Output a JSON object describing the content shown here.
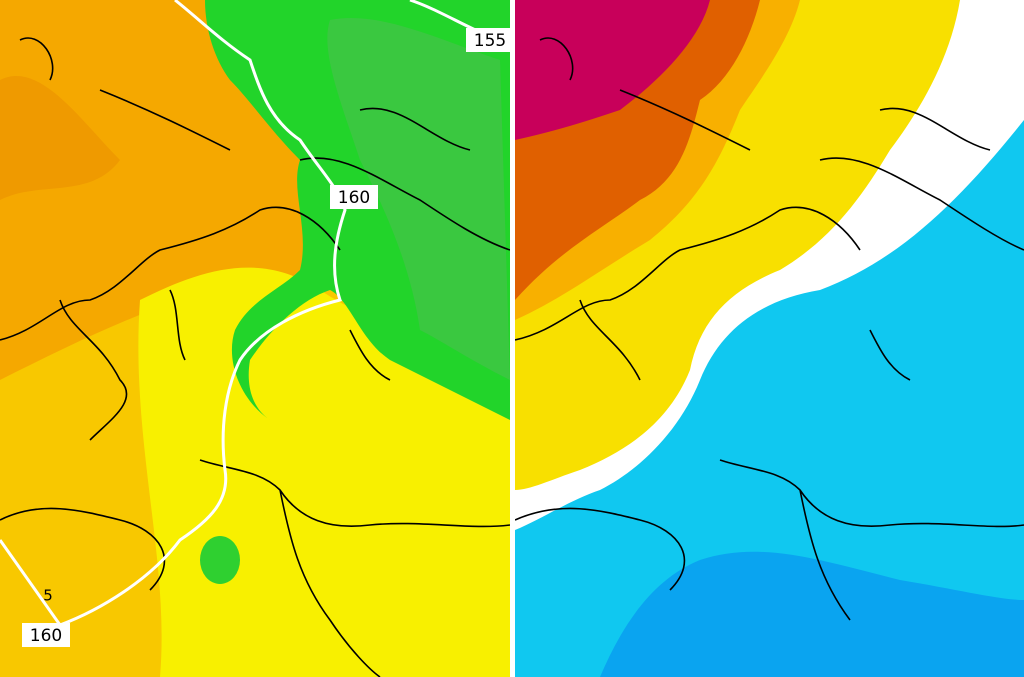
{
  "left_map": {
    "isoline_labels": [
      "155",
      "160",
      "160"
    ],
    "contour_label": "5"
  }
}
